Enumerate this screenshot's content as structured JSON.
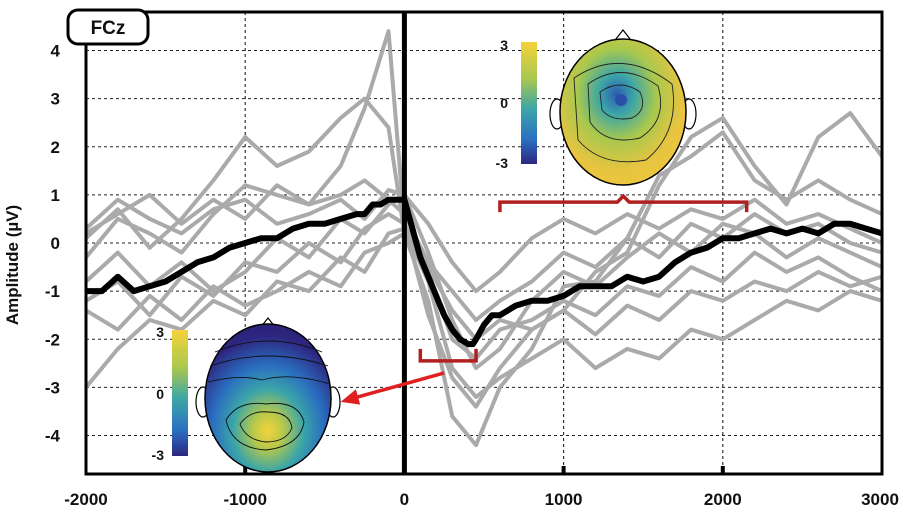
{
  "chart_data": {
    "type": "line",
    "channel_label": "FCz",
    "ylabel": "Amplitude (µV)",
    "xlabel": "",
    "xlim": [
      -2000,
      3000
    ],
    "ylim": [
      -4.8,
      4.8
    ],
    "x_ticks": [
      -2000,
      -1000,
      0,
      1000,
      2000,
      3000
    ],
    "x_tick_labels": [
      "-2000",
      "-1000",
      "0",
      "1000",
      "2000",
      "3000"
    ],
    "y_ticks": [
      4,
      3,
      2,
      1,
      0,
      -1,
      -2,
      -3,
      -4
    ],
    "y_tick_labels": [
      "4",
      "3",
      "2",
      "1",
      "0",
      "-1",
      "-2",
      "-3",
      "-4"
    ],
    "grid": true,
    "event_line_x": 0,
    "series": [
      {
        "role": "grand-average",
        "color": "#000000",
        "x": [
          -2000,
          -1900,
          -1800,
          -1700,
          -1600,
          -1500,
          -1400,
          -1300,
          -1200,
          -1100,
          -1000,
          -900,
          -800,
          -700,
          -600,
          -500,
          -400,
          -300,
          -250,
          -200,
          -150,
          -100,
          -50,
          0,
          50,
          100,
          150,
          200,
          250,
          300,
          350,
          400,
          430,
          450,
          500,
          550,
          600,
          700,
          800,
          900,
          1000,
          1100,
          1200,
          1300,
          1400,
          1500,
          1600,
          1700,
          1800,
          1900,
          2000,
          2100,
          2200,
          2300,
          2400,
          2500,
          2600,
          2700,
          2800,
          2900,
          3000
        ],
        "y": [
          -1.0,
          -1.0,
          -0.7,
          -1.0,
          -0.9,
          -0.8,
          -0.6,
          -0.4,
          -0.3,
          -0.1,
          0.0,
          0.1,
          0.1,
          0.3,
          0.4,
          0.4,
          0.5,
          0.6,
          0.6,
          0.8,
          0.8,
          0.9,
          0.9,
          0.9,
          0.3,
          -0.3,
          -0.7,
          -1.1,
          -1.5,
          -1.8,
          -2.0,
          -2.1,
          -2.1,
          -2.0,
          -1.7,
          -1.5,
          -1.5,
          -1.3,
          -1.2,
          -1.2,
          -1.1,
          -0.9,
          -0.9,
          -0.9,
          -0.7,
          -0.8,
          -0.7,
          -0.4,
          -0.2,
          -0.1,
          0.1,
          0.1,
          0.2,
          0.3,
          0.2,
          0.3,
          0.2,
          0.4,
          0.4,
          0.3,
          0.2
        ]
      },
      {
        "role": "individual",
        "color": "#aaaaaa",
        "x": [
          -2000,
          -1800,
          -1600,
          -1400,
          -1200,
          -1000,
          -800,
          -600,
          -400,
          -250,
          -100,
          0,
          150,
          300,
          450,
          600,
          800,
          1000,
          1200,
          1400,
          1600,
          1800,
          2000,
          2200,
          2400,
          2600,
          2800,
          3000
        ],
        "y": [
          -0.3,
          0.5,
          0.2,
          -0.2,
          0.6,
          1.2,
          1.0,
          0.8,
          1.6,
          2.8,
          4.4,
          0.4,
          -1.5,
          -2.8,
          -3.4,
          -2.6,
          -1.8,
          -1.4,
          -0.6,
          -0.2,
          1.2,
          2.2,
          2.6,
          1.6,
          0.8,
          2.2,
          2.7,
          1.8
        ]
      },
      {
        "role": "individual",
        "color": "#aaaaaa",
        "x": [
          -2000,
          -1800,
          -1600,
          -1400,
          -1200,
          -1000,
          -800,
          -600,
          -400,
          -250,
          -100,
          0,
          150,
          300,
          450,
          600,
          800,
          1000,
          1200,
          1400,
          1600,
          1800,
          2000,
          2200,
          2400,
          2600,
          2800,
          3000
        ],
        "y": [
          0.1,
          0.7,
          -0.1,
          0.5,
          1.3,
          2.2,
          1.6,
          1.9,
          2.6,
          3.0,
          2.4,
          0.2,
          -1.2,
          -3.6,
          -4.2,
          -3.0,
          -2.2,
          -0.9,
          -0.8,
          0.1,
          1.4,
          1.8,
          2.3,
          1.3,
          0.9,
          1.3,
          0.9,
          0.6
        ]
      },
      {
        "role": "individual",
        "color": "#aaaaaa",
        "x": [
          -2000,
          -1800,
          -1600,
          -1400,
          -1200,
          -1000,
          -800,
          -600,
          -400,
          -250,
          -100,
          0,
          150,
          300,
          450,
          600,
          800,
          1000,
          1200,
          1400,
          1600,
          1800,
          2000,
          2200,
          2400,
          2600,
          2800,
          3000
        ],
        "y": [
          -0.8,
          -0.2,
          -0.9,
          -0.4,
          -1.0,
          -0.6,
          0.1,
          -0.3,
          0.5,
          0.2,
          0.8,
          1.0,
          -0.2,
          -1.6,
          -2.6,
          -2.2,
          -1.2,
          -0.6,
          -0.9,
          -0.3,
          0.2,
          -0.2,
          0.4,
          0.2,
          -0.3,
          0.1,
          -0.2,
          -0.5
        ]
      },
      {
        "role": "individual",
        "color": "#aaaaaa",
        "x": [
          -2000,
          -1800,
          -1600,
          -1400,
          -1200,
          -1000,
          -800,
          -600,
          -400,
          -250,
          -100,
          0,
          150,
          300,
          450,
          600,
          800,
          1000,
          1200,
          1400,
          1600,
          1800,
          2000,
          2200,
          2400,
          2600,
          2800,
          3000
        ],
        "y": [
          0.3,
          0.9,
          0.5,
          0.2,
          0.7,
          0.9,
          0.4,
          0.6,
          0.9,
          0.5,
          1.1,
          1.0,
          0.4,
          -0.4,
          -1.0,
          -0.6,
          0.1,
          0.5,
          0.2,
          0.6,
          0.3,
          0.7,
          0.5,
          0.9,
          0.4,
          0.6,
          0.3,
          0.0
        ]
      },
      {
        "role": "individual",
        "color": "#aaaaaa",
        "x": [
          -2000,
          -1800,
          -1600,
          -1400,
          -1200,
          -1000,
          -800,
          -600,
          -400,
          -250,
          -100,
          0,
          150,
          300,
          450,
          600,
          800,
          1000,
          1200,
          1400,
          1600,
          1800,
          2000,
          2200,
          2400,
          2600,
          2800,
          3000
        ],
        "y": [
          -1.2,
          -0.8,
          -1.5,
          -0.7,
          -1.1,
          -0.4,
          -0.6,
          0.0,
          -0.4,
          0.3,
          0.6,
          0.4,
          -0.6,
          -2.0,
          -2.4,
          -1.8,
          -1.6,
          -1.2,
          -1.5,
          -0.9,
          -1.1,
          -0.5,
          -0.8,
          -0.2,
          -0.6,
          -0.3,
          -0.7,
          -1.0
        ]
      },
      {
        "role": "individual",
        "color": "#aaaaaa",
        "x": [
          -2000,
          -1800,
          -1600,
          -1400,
          -1200,
          -1000,
          -800,
          -600,
          -400,
          -250,
          -100,
          0,
          150,
          300,
          450,
          600,
          800,
          1000,
          1200,
          1400,
          1600,
          1800,
          2000,
          2200,
          2400,
          2600,
          2800,
          3000
        ],
        "y": [
          0.2,
          0.6,
          1.0,
          0.4,
          0.9,
          0.5,
          1.2,
          0.8,
          1.0,
          1.3,
          0.9,
          0.6,
          -0.4,
          -1.0,
          -1.6,
          -1.2,
          -0.8,
          -0.2,
          -0.5,
          0.1,
          -0.3,
          0.4,
          0.1,
          0.6,
          0.2,
          0.4,
          0.0,
          -0.2
        ]
      },
      {
        "role": "individual",
        "color": "#aaaaaa",
        "x": [
          -2000,
          -1800,
          -1600,
          -1400,
          -1200,
          -1000,
          -800,
          -600,
          -400,
          -250,
          -100,
          0,
          150,
          300,
          450,
          600,
          800,
          1000,
          1200,
          1400,
          1600,
          1800,
          2000,
          2200,
          2400,
          2600,
          2800,
          3000
        ],
        "y": [
          -3.0,
          -2.2,
          -1.6,
          -1.8,
          -1.2,
          -1.5,
          -0.8,
          -1.0,
          -0.3,
          -0.6,
          0.2,
          0.3,
          -0.8,
          -2.6,
          -3.2,
          -2.8,
          -2.4,
          -2.0,
          -2.6,
          -2.2,
          -2.4,
          -1.8,
          -2.0,
          -1.6,
          -1.2,
          -1.4,
          -1.0,
          -1.2
        ]
      },
      {
        "role": "individual",
        "color": "#aaaaaa",
        "x": [
          -2000,
          -1800,
          -1600,
          -1400,
          -1200,
          -1000,
          -800,
          -600,
          -400,
          -250,
          -100,
          0,
          150,
          300,
          450,
          600,
          800,
          1000,
          1200,
          1400,
          1600,
          1800,
          2000,
          2200,
          2400,
          2600,
          2800,
          3000
        ],
        "y": [
          -1.4,
          -1.8,
          -1.1,
          -1.6,
          -0.9,
          -1.3,
          -1.0,
          -0.6,
          -0.9,
          -0.2,
          0.0,
          0.2,
          -0.5,
          -1.4,
          -2.0,
          -1.6,
          -1.8,
          -1.4,
          -1.9,
          -1.3,
          -1.6,
          -1.0,
          -1.2,
          -0.8,
          -1.0,
          -0.6,
          -0.9,
          -0.7
        ]
      }
    ],
    "annotations": {
      "early_window": {
        "x_range": [
          100,
          450
        ],
        "y": -2.45,
        "color": "#b02020"
      },
      "late_window": {
        "x_range": [
          600,
          2150
        ],
        "y": 0.85,
        "color": "#b02020"
      },
      "arrow": {
        "from": [
          250,
          -2.7
        ],
        "to": [
          -400,
          -3.3
        ],
        "color": "#e02020"
      }
    },
    "topomaps": [
      {
        "role": "early",
        "colorbar_ticks": [
          "3",
          "0",
          "-3"
        ],
        "description_colors": [
          "#f5d23b",
          "#3ba5a8",
          "#2d2680"
        ]
      },
      {
        "role": "late",
        "colorbar_ticks": [
          "3",
          "0",
          "-3"
        ],
        "description_colors": [
          "#f5d23b",
          "#3ba5a8",
          "#2d2680"
        ]
      }
    ]
  }
}
